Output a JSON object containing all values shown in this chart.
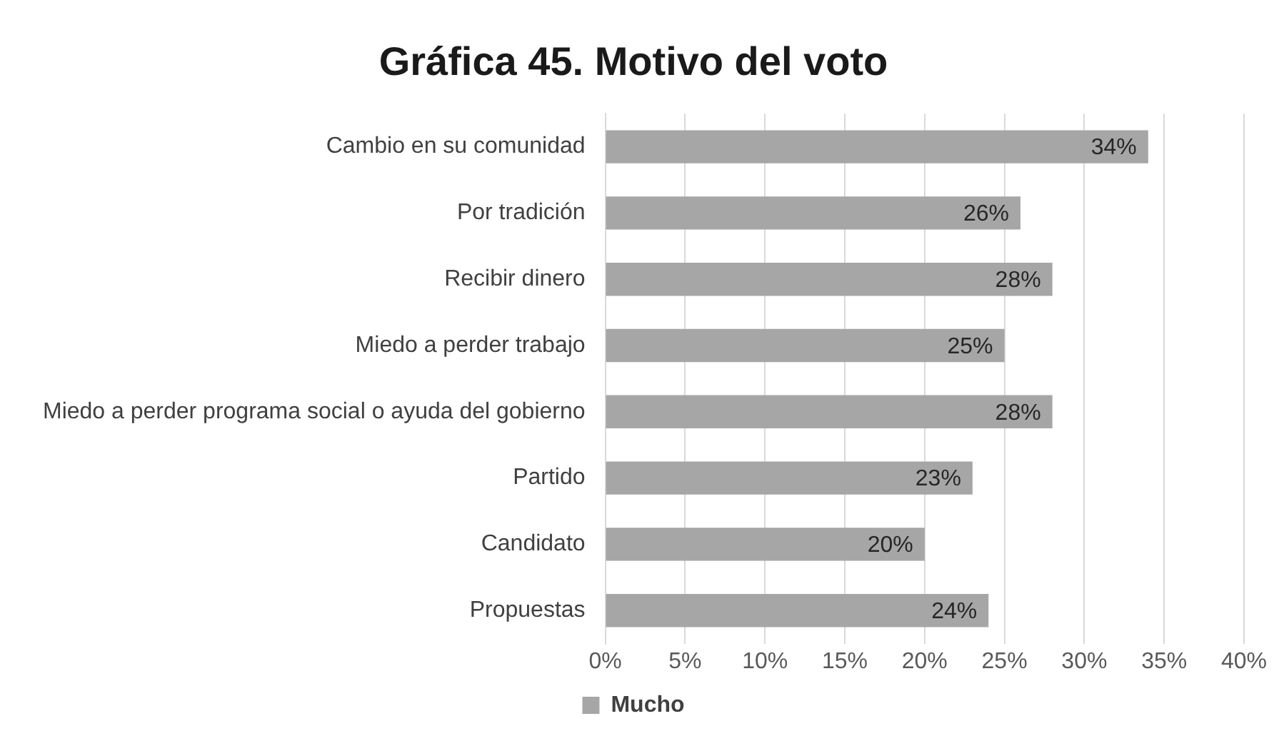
{
  "chart_data": {
    "type": "bar",
    "orientation": "horizontal",
    "title": "Gráfica 45. Motivo del voto",
    "categories": [
      "Cambio en su comunidad",
      "Por tradición",
      "Recibir dinero",
      "Miedo a perder trabajo",
      "Miedo a perder programa social o ayuda del gobierno",
      "Partido",
      "Candidato",
      "Propuestas"
    ],
    "series": [
      {
        "name": "Mucho",
        "color": "#a6a6a6",
        "values": [
          34,
          26,
          28,
          25,
          28,
          23,
          20,
          24
        ],
        "value_labels": [
          "34%",
          "26%",
          "28%",
          "25%",
          "28%",
          "23%",
          "20%",
          "24%"
        ]
      }
    ],
    "xlim": [
      0,
      40
    ],
    "xticks": [
      {
        "value": 0,
        "label": "0%"
      },
      {
        "value": 5,
        "label": "5%"
      },
      {
        "value": 10,
        "label": "10%"
      },
      {
        "value": 15,
        "label": "15%"
      },
      {
        "value": 20,
        "label": "20%"
      },
      {
        "value": 25,
        "label": "25%"
      },
      {
        "value": 30,
        "label": "30%"
      },
      {
        "value": 35,
        "label": "35%"
      },
      {
        "value": 40,
        "label": "40%"
      }
    ],
    "grid": "x",
    "legend": "bottom"
  }
}
